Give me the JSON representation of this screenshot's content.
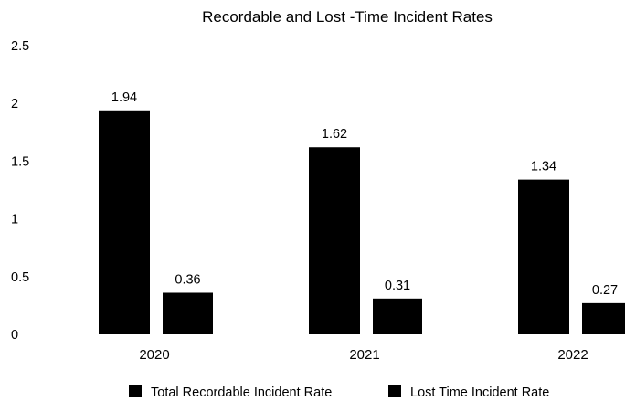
{
  "chart_data": {
    "type": "bar",
    "title": "Recordable and Lost -Time Incident Rates",
    "categories": [
      "2020",
      "2021",
      "2022"
    ],
    "series": [
      {
        "name": "Total Recordable Incident Rate",
        "values": [
          1.94,
          1.62,
          1.34
        ],
        "labels": [
          "1.94",
          "1.62",
          "1.34"
        ],
        "color": "#000000"
      },
      {
        "name": "Lost Time Incident Rate",
        "values": [
          0.36,
          0.31,
          0.27
        ],
        "labels": [
          "0.36",
          "0.31",
          "0.27"
        ],
        "color": "#000000"
      }
    ],
    "yticks": [
      "0",
      "0.5",
      "1",
      "1.5",
      "2",
      "2.5"
    ],
    "ylim": [
      0,
      2.5
    ],
    "grid": false,
    "legend_position": "bottom"
  }
}
